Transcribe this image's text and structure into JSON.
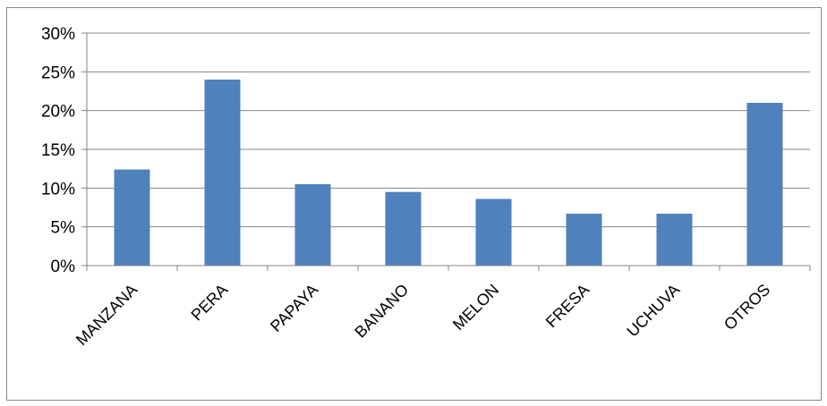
{
  "chart_data": {
    "type": "bar",
    "categories": [
      "MANZANA",
      "PERA",
      "PAPAYA",
      "BANANO",
      "MELON",
      "FRESA",
      "UCHUVA",
      "OTROS"
    ],
    "values": [
      12.4,
      24.0,
      10.5,
      9.5,
      8.6,
      6.7,
      6.7,
      21.0
    ],
    "ylim": [
      0,
      30
    ],
    "yticks": [
      0,
      5,
      10,
      15,
      20,
      25,
      30
    ],
    "ytick_labels": [
      "0%",
      "5%",
      "10%",
      "15%",
      "20%",
      "25%",
      "30%"
    ],
    "grid": true,
    "bar_color": "#4f81bd",
    "gridline_color": "#868686"
  }
}
